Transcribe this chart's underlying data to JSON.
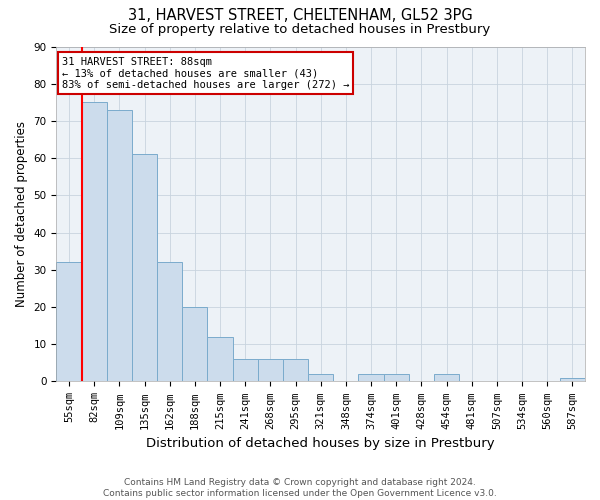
{
  "title1": "31, HARVEST STREET, CHELTENHAM, GL52 3PG",
  "title2": "Size of property relative to detached houses in Prestbury",
  "xlabel": "Distribution of detached houses by size in Prestbury",
  "ylabel": "Number of detached properties",
  "categories": [
    "55sqm",
    "82sqm",
    "109sqm",
    "135sqm",
    "162sqm",
    "188sqm",
    "215sqm",
    "241sqm",
    "268sqm",
    "295sqm",
    "321sqm",
    "348sqm",
    "374sqm",
    "401sqm",
    "428sqm",
    "454sqm",
    "481sqm",
    "507sqm",
    "534sqm",
    "560sqm",
    "587sqm"
  ],
  "values": [
    32,
    75,
    73,
    61,
    32,
    20,
    12,
    6,
    6,
    6,
    2,
    0,
    2,
    2,
    0,
    2,
    0,
    0,
    0,
    0,
    1
  ],
  "bar_color": "#ccdcec",
  "bar_edge_color": "#7aabcc",
  "grid_color": "#c8d4de",
  "background_color": "#edf2f7",
  "annotation_line1": "31 HARVEST STREET: 88sqm",
  "annotation_line2": "← 13% of detached houses are smaller (43)",
  "annotation_line3": "83% of semi-detached houses are larger (272) →",
  "annotation_box_color": "#ffffff",
  "annotation_box_edge": "#cc0000",
  "redline_bar_index": 1,
  "ylim": [
    0,
    90
  ],
  "yticks": [
    0,
    10,
    20,
    30,
    40,
    50,
    60,
    70,
    80,
    90
  ],
  "footnote": "Contains HM Land Registry data © Crown copyright and database right 2024.\nContains public sector information licensed under the Open Government Licence v3.0.",
  "title_fontsize": 10.5,
  "subtitle_fontsize": 9.5,
  "tick_fontsize": 7.5,
  "ylabel_fontsize": 8.5,
  "xlabel_fontsize": 9.5,
  "footnote_fontsize": 6.5
}
